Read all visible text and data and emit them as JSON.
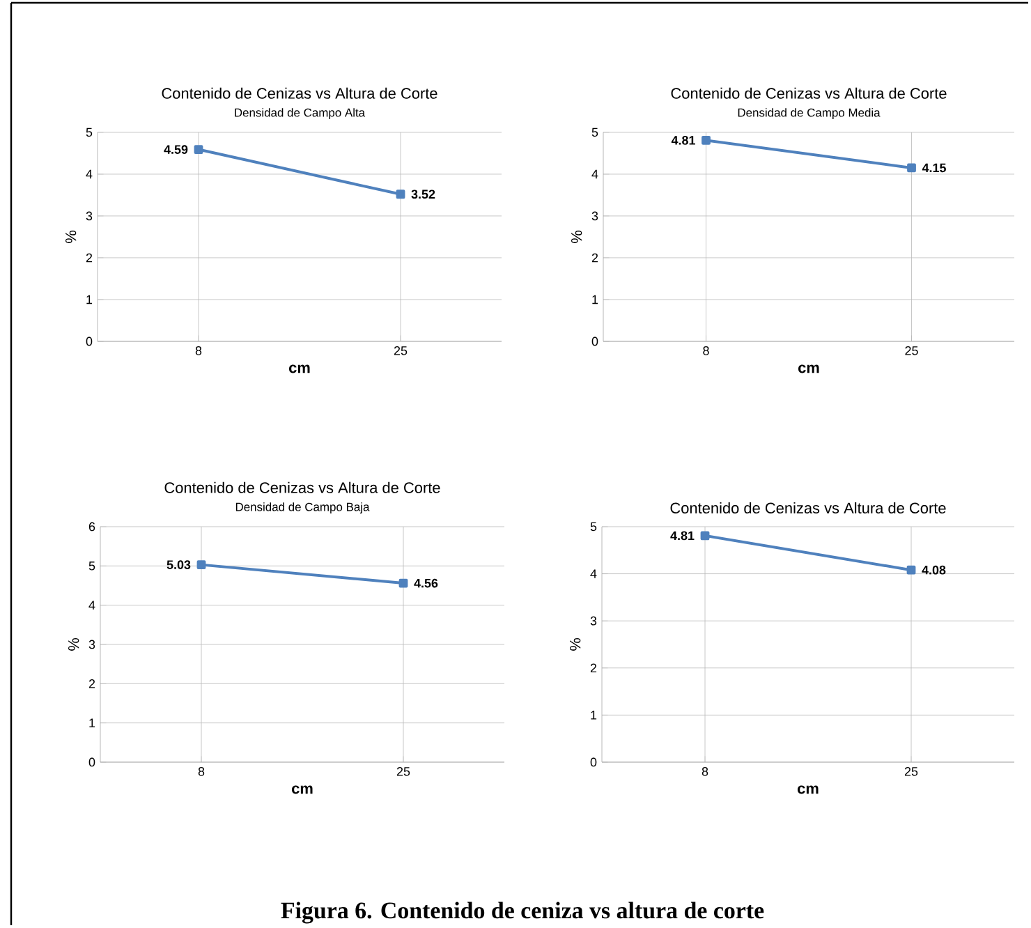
{
  "chart_data": [
    {
      "type": "line",
      "title": "Contenido de Cenizas vs Altura de Corte",
      "subtitle": "Densidad de Campo Alta",
      "xlabel": "cm",
      "ylabel": "%",
      "categories": [
        "8",
        "25"
      ],
      "values": [
        4.59,
        3.52
      ],
      "color": "#4f81bd",
      "marker": "square",
      "ylim": [
        0,
        5
      ],
      "yticks": [
        0,
        1,
        2,
        3,
        4,
        5
      ],
      "grid": true,
      "data_labels": true
    },
    {
      "type": "line",
      "title": "Contenido de Cenizas  vs Altura de Corte",
      "subtitle": "Densidad de Campo Media",
      "xlabel": "cm",
      "ylabel": "%",
      "categories": [
        "8",
        "25"
      ],
      "values": [
        4.81,
        4.15
      ],
      "color": "#4f81bd",
      "marker": "square",
      "ylim": [
        0,
        5
      ],
      "yticks": [
        0,
        1,
        2,
        3,
        4,
        5
      ],
      "grid": true,
      "data_labels": true
    },
    {
      "type": "line",
      "title": "Contenido de Cenizas  vs Altura de Corte",
      "subtitle": "Densidad de Campo Baja",
      "xlabel": "cm",
      "ylabel": "%",
      "categories": [
        "8",
        "25"
      ],
      "values": [
        5.03,
        4.56
      ],
      "color": "#4f81bd",
      "marker": "square",
      "ylim": [
        0,
        6
      ],
      "yticks": [
        0,
        1,
        2,
        3,
        4,
        5,
        6
      ],
      "grid": true,
      "data_labels": true
    },
    {
      "type": "line",
      "title": "Contenido de Cenizas  vs Altura de Corte",
      "xlabel": "cm",
      "ylabel": "%",
      "categories": [
        "8",
        "25"
      ],
      "values": [
        4.81,
        4.08
      ],
      "color": "#4f81bd",
      "marker": "square",
      "ylim": [
        0,
        5
      ],
      "yticks": [
        0,
        1,
        2,
        3,
        4,
        5
      ],
      "grid": true,
      "data_labels": true,
      "annotations": [
        "Figura 6. Contenido de ceniza vs altura de corte"
      ]
    }
  ]
}
